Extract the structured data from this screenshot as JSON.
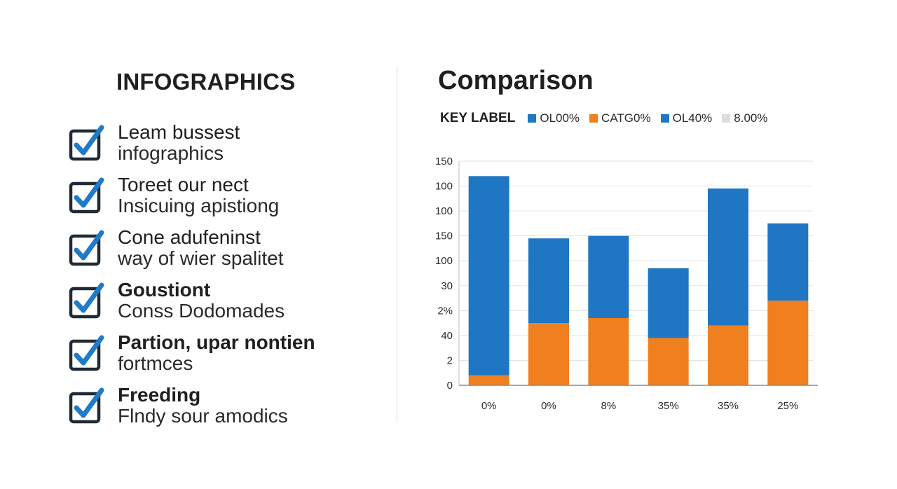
{
  "left_panel": {
    "title": "INFOGRAPHICS",
    "items": [
      {
        "line1": "Leam bussest",
        "line2": "infographics",
        "bold": false
      },
      {
        "line1": "Toreet our nect",
        "line2": "Insicuing apistiong",
        "bold": false
      },
      {
        "line1": "Cone adufeninst",
        "line2": "way of wier spalitet",
        "bold": false
      },
      {
        "line1": "Goustiont",
        "line2": "Conss Dodomades",
        "bold": true
      },
      {
        "line1": "Partion, upar nontien",
        "line2": "fortmces",
        "bold": true
      },
      {
        "line1": "Freeding",
        "line2": "Flndy sour amodics",
        "bold": true
      }
    ]
  },
  "chart_data": {
    "type": "bar",
    "title": "Comparison",
    "legend_title": "KEY LABEL",
    "legend": [
      {
        "label": "OL00%",
        "color": "#1f77c4"
      },
      {
        "label": "CATG0%",
        "color": "#f07f1f"
      },
      {
        "label": "OL40%",
        "color": "#1f77c4"
      },
      {
        "label": "8.00%",
        "color": "#dcdcdc"
      }
    ],
    "legend_placement": "top",
    "categories": [
      "0%",
      "0%",
      "8%",
      "35%",
      "35%",
      "25%"
    ],
    "y_tick_labels": [
      "0",
      "2",
      "40",
      "2%",
      "30",
      "100",
      "150",
      "100",
      "100",
      "150"
    ],
    "stacked": true,
    "series": [
      {
        "color": "#f07f1f",
        "values": [
          4,
          25,
          27,
          19,
          24,
          34
        ]
      },
      {
        "color": "#1f77c4",
        "values": [
          80,
          34,
          33,
          28,
          55,
          31
        ]
      }
    ],
    "ylim": [
      0,
      90
    ],
    "grid": true
  }
}
